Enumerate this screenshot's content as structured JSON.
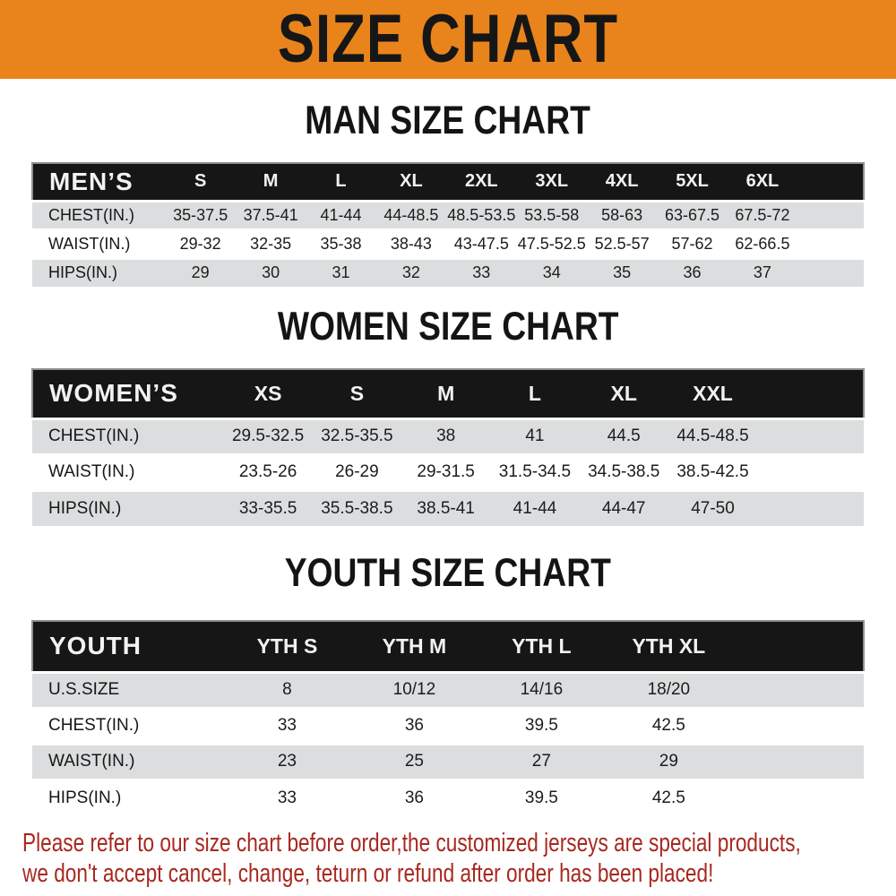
{
  "banner": {
    "title": "SIZE CHART"
  },
  "colors": {
    "orange": "#E9831B",
    "black": "#161616",
    "gray": "#DBDDDE",
    "red": "#A8281F"
  },
  "sections": [
    {
      "title": "MAN SIZE CHART",
      "header_label": "MEN’S",
      "columns": [
        "S",
        "M",
        "L",
        "XL",
        "2XL",
        "3XL",
        "4XL",
        "5XL",
        "6XL"
      ],
      "rows": [
        {
          "label": "CHEST(IN.)",
          "values": [
            "35-37.5",
            "37.5-41",
            "41-44",
            "44-48.5",
            "48.5-53.5",
            "53.5-58",
            "58-63",
            "63-67.5",
            "67.5-72"
          ]
        },
        {
          "label": "WAIST(IN.)",
          "values": [
            "29-32",
            "32-35",
            "35-38",
            "38-43",
            "43-47.5",
            "47.5-52.5",
            "52.5-57",
            "57-62",
            "62-66.5"
          ]
        },
        {
          "label": "HIPS(IN.)",
          "values": [
            "29",
            "30",
            "31",
            "32",
            "33",
            "34",
            "35",
            "36",
            "37"
          ]
        }
      ]
    },
    {
      "title": "WOMEN SIZE CHART",
      "header_label": "WOMEN’S",
      "columns": [
        "XS",
        "S",
        "M",
        "L",
        "XL",
        "XXL"
      ],
      "rows": [
        {
          "label": "CHEST(IN.)",
          "values": [
            "29.5-32.5",
            "32.5-35.5",
            "38",
            "41",
            "44.5",
            "44.5-48.5"
          ]
        },
        {
          "label": "WAIST(IN.)",
          "values": [
            "23.5-26",
            "26-29",
            "29-31.5",
            "31.5-34.5",
            "34.5-38.5",
            "38.5-42.5"
          ]
        },
        {
          "label": "HIPS(IN.)",
          "values": [
            "33-35.5",
            "35.5-38.5",
            "38.5-41",
            "41-44",
            "44-47",
            "47-50"
          ]
        }
      ]
    },
    {
      "title": "YOUTH SIZE CHART",
      "header_label": "YOUTH",
      "columns": [
        "YTH S",
        "YTH M",
        "YTH L",
        "YTH XL"
      ],
      "rows": [
        {
          "label": "U.S.SIZE",
          "values": [
            "8",
            "10/12",
            "14/16",
            "18/20"
          ]
        },
        {
          "label": "CHEST(IN.)",
          "values": [
            "33",
            "36",
            "39.5",
            "42.5"
          ]
        },
        {
          "label": "WAIST(IN.)",
          "values": [
            "23",
            "25",
            "27",
            "29"
          ]
        },
        {
          "label": "HIPS(IN.)",
          "values": [
            "33",
            "36",
            "39.5",
            "42.5"
          ]
        }
      ]
    }
  ],
  "footer": {
    "lines": [
      "Please refer to our size chart before order,the customized jerseys are special products,",
      "we don't accept cancel, change, teturn or refund after order has been placed!"
    ]
  }
}
